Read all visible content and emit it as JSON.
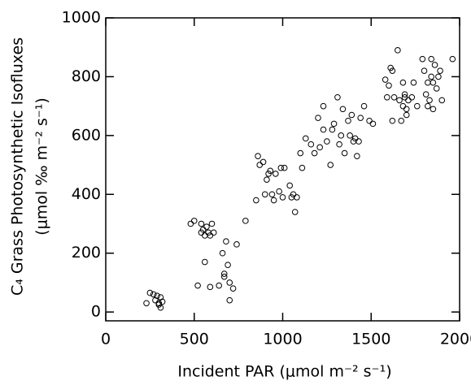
{
  "chart_data": {
    "type": "scatter",
    "xlabel": "Incident PAR (μmol m⁻² s⁻¹)",
    "ylabel": [
      "C₄ Grass Photosynthetic Isofluxes",
      "(μmol ‰ m⁻² s⁻¹)"
    ],
    "x": [
      230,
      250,
      270,
      280,
      290,
      300,
      310,
      300,
      320,
      310,
      480,
      500,
      520,
      540,
      540,
      550,
      560,
      560,
      570,
      580,
      590,
      590,
      600,
      610,
      640,
      660,
      670,
      670,
      680,
      690,
      700,
      700,
      720,
      740,
      790,
      850,
      860,
      870,
      890,
      900,
      910,
      920,
      930,
      940,
      950,
      960,
      980,
      990,
      1000,
      1010,
      1040,
      1050,
      1060,
      1070,
      1080,
      1100,
      1110,
      1130,
      1160,
      1180,
      1200,
      1210,
      1230,
      1230,
      1250,
      1270,
      1280,
      1290,
      1310,
      1320,
      1330,
      1340,
      1350,
      1370,
      1380,
      1390,
      1400,
      1410,
      1420,
      1430,
      1440,
      1460,
      1490,
      1510,
      1580,
      1590,
      1600,
      1610,
      1620,
      1620,
      1630,
      1650,
      1660,
      1670,
      1680,
      1680,
      1690,
      1690,
      1700,
      1700,
      1710,
      1730,
      1740,
      1760,
      1790,
      1800,
      1810,
      1820,
      1830,
      1840,
      1840,
      1850,
      1860,
      1870,
      1880,
      1890,
      1900,
      1960,
      1820,
      1850
    ],
    "values": [
      30,
      65,
      60,
      40,
      55,
      30,
      15,
      25,
      35,
      50,
      300,
      310,
      90,
      300,
      270,
      280,
      260,
      170,
      290,
      270,
      85,
      260,
      300,
      270,
      90,
      200,
      130,
      120,
      240,
      160,
      40,
      100,
      80,
      230,
      310,
      380,
      530,
      500,
      510,
      400,
      450,
      470,
      480,
      400,
      380,
      470,
      410,
      490,
      390,
      490,
      430,
      390,
      400,
      340,
      390,
      540,
      490,
      590,
      570,
      540,
      660,
      560,
      620,
      700,
      580,
      500,
      620,
      640,
      730,
      570,
      600,
      690,
      540,
      650,
      600,
      670,
      580,
      590,
      530,
      580,
      660,
      700,
      650,
      640,
      790,
      730,
      770,
      830,
      650,
      820,
      730,
      890,
      720,
      650,
      780,
      700,
      740,
      730,
      690,
      670,
      720,
      730,
      780,
      700,
      860,
      820,
      740,
      780,
      720,
      860,
      800,
      690,
      840,
      760,
      800,
      820,
      720,
      860,
      700,
      780
    ],
    "xlim": [
      0,
      2000
    ],
    "xticks": [
      0,
      500,
      1000,
      1500,
      2000
    ],
    "ylim": [
      -30,
      1000
    ],
    "yticks": [
      0,
      200,
      400,
      600,
      800,
      1000
    ],
    "color": "#000000"
  }
}
